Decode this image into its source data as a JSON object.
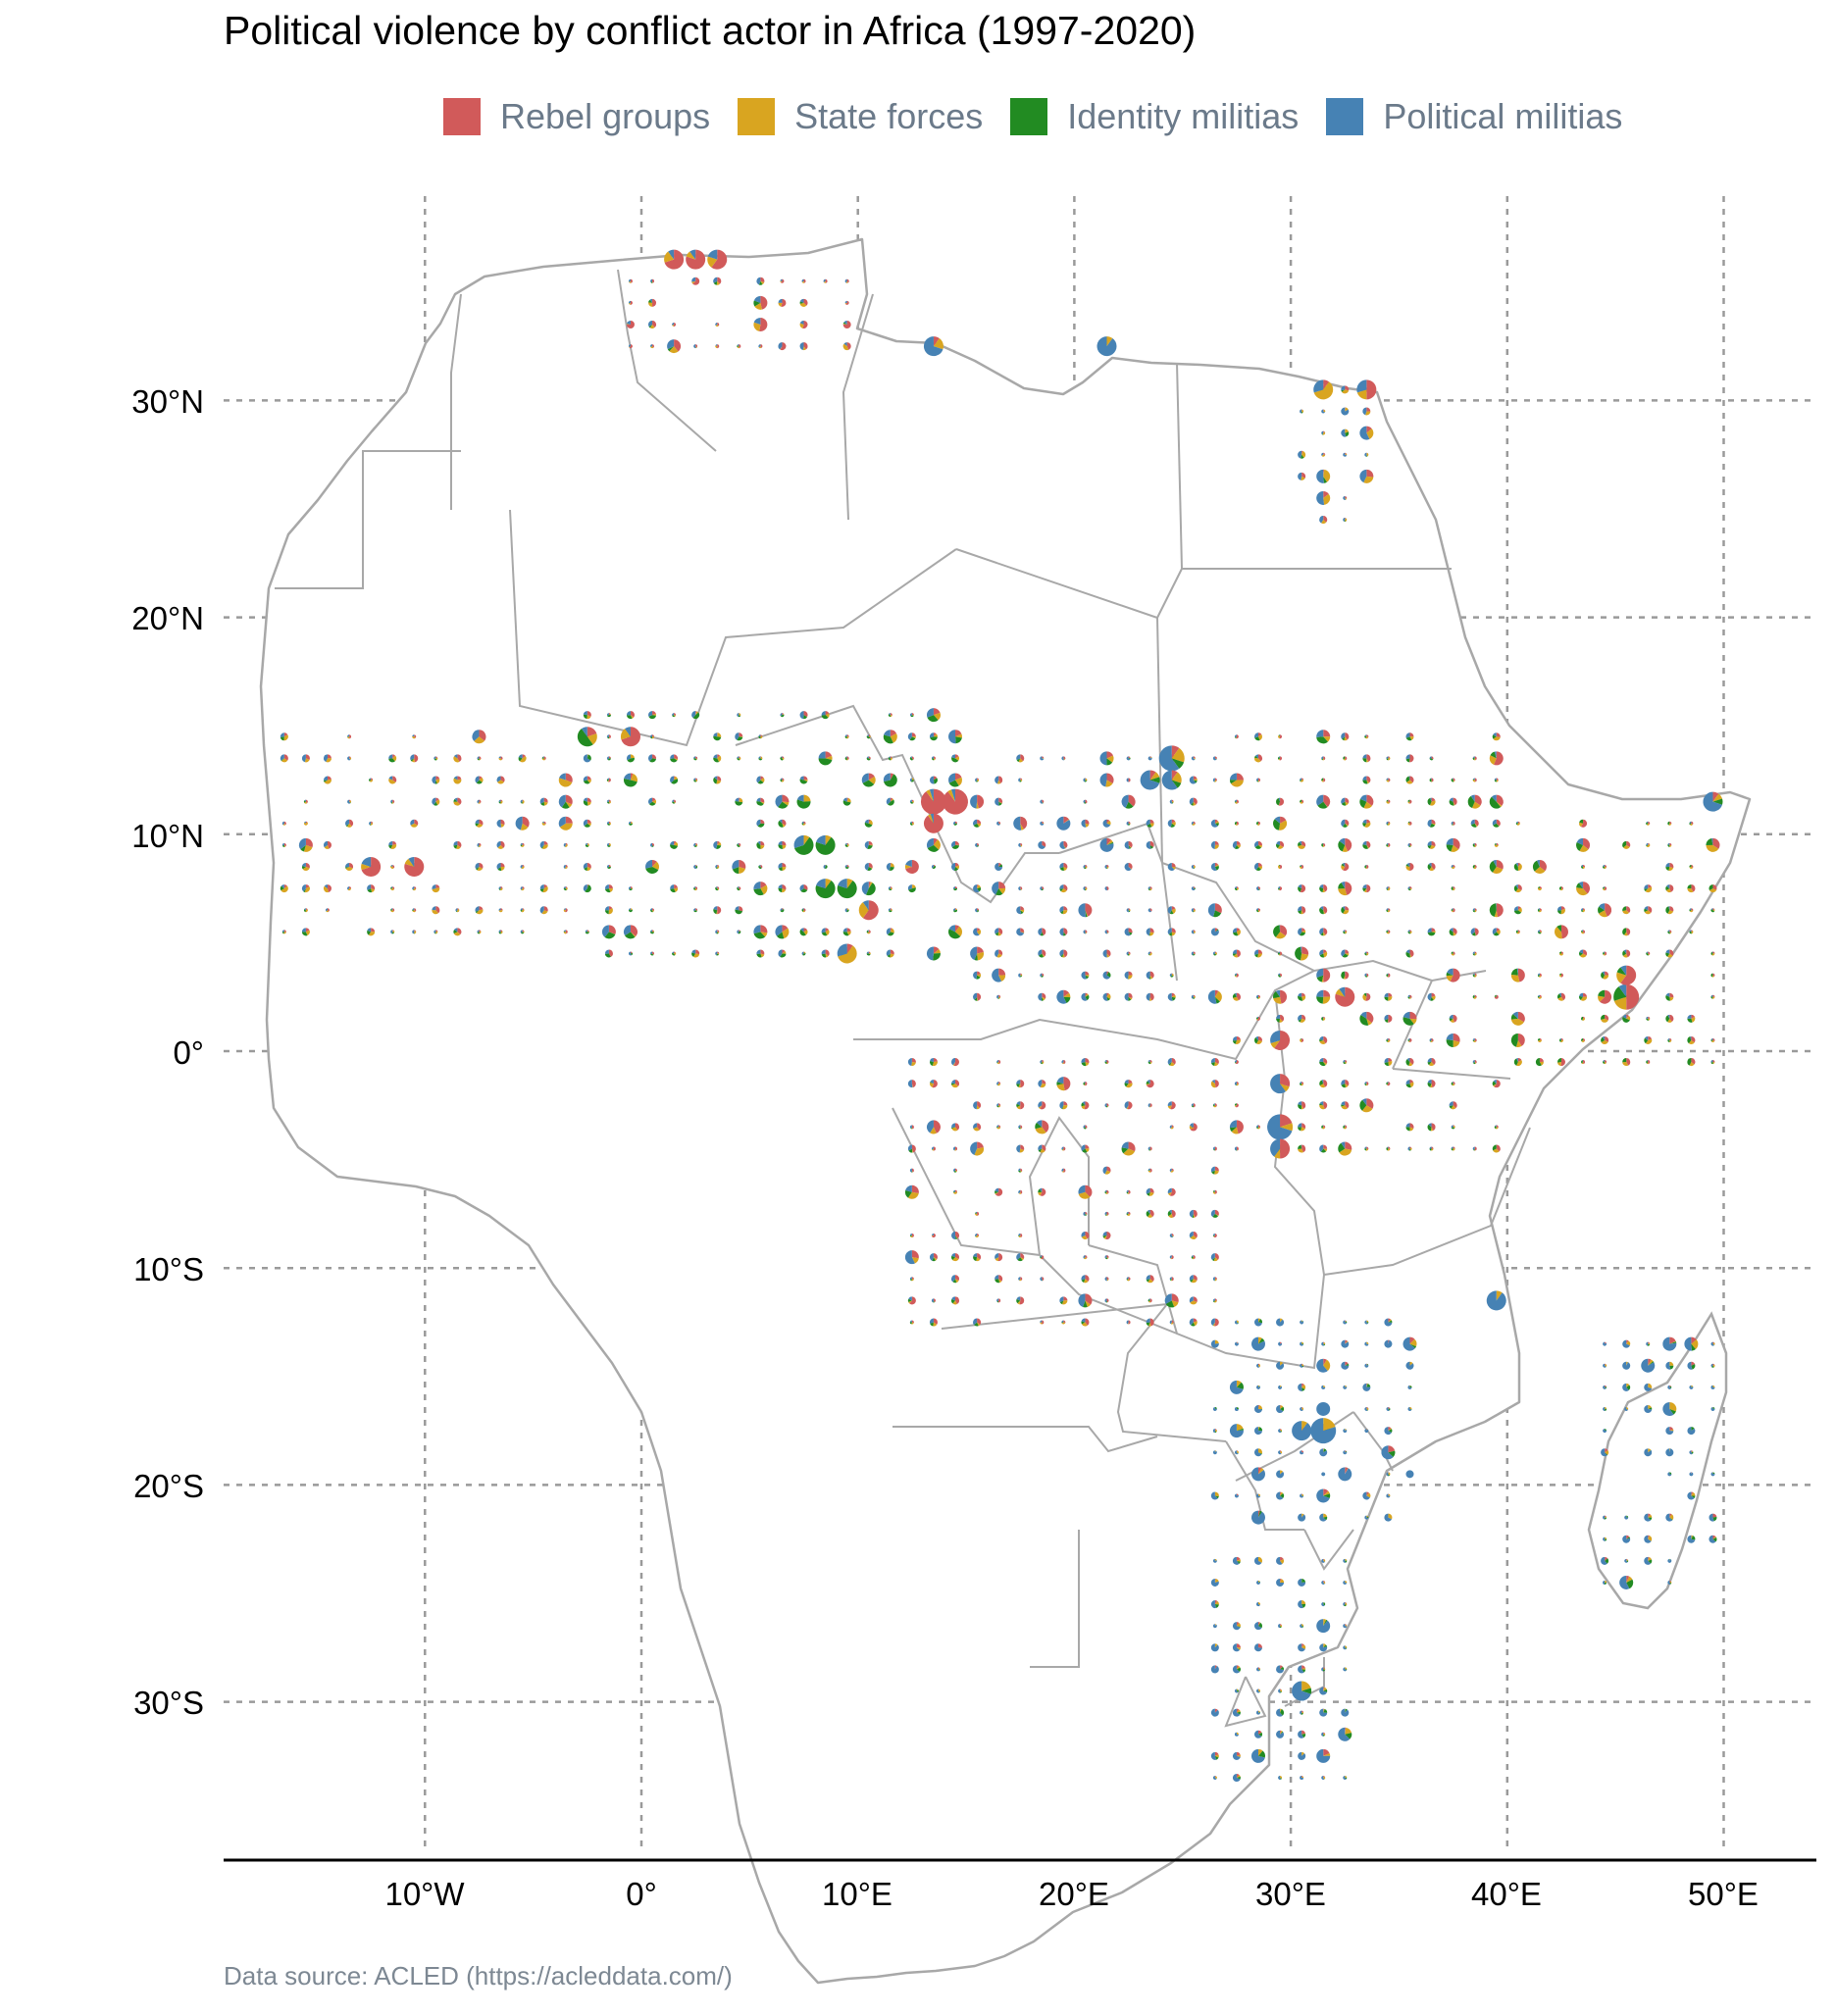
{
  "title": "Political violence by conflict actor in Africa (1997-2020)",
  "legend": [
    {
      "label": "Rebel groups",
      "color": "#d15a5a"
    },
    {
      "label": "State forces",
      "color": "#d9a520"
    },
    {
      "label": "Identity militias",
      "color": "#228b22"
    },
    {
      "label": "Political militias",
      "color": "#4682b4"
    }
  ],
  "axes": {
    "x_ticks": [
      "10°W",
      "0°",
      "10°E",
      "20°E",
      "30°E",
      "40°E",
      "50°E"
    ],
    "y_ticks": [
      "30°N",
      "20°N",
      "10°N",
      "0°",
      "10°S",
      "20°S",
      "30°S"
    ]
  },
  "source": "Data source: ACLED (https://acleddata.com/)",
  "chart_data": {
    "type": "map-pie-grid",
    "title": "Political violence by conflict actor in Africa (1997-2020)",
    "lon_range": [
      -20,
      55
    ],
    "lat_range": [
      -37,
      38
    ],
    "series": [
      "Rebel groups",
      "State forces",
      "Identity militias",
      "Political militias"
    ],
    "points": [
      {
        "lon": 1.5,
        "lat": 36.5,
        "size": 3,
        "shares": [
          0.7,
          0.2,
          0.0,
          0.1
        ]
      },
      {
        "lon": 2.5,
        "lat": 36.5,
        "size": 3,
        "shares": [
          0.8,
          0.1,
          0.0,
          0.1
        ]
      },
      {
        "lon": 3.5,
        "lat": 36.5,
        "size": 3,
        "shares": [
          0.6,
          0.2,
          0.0,
          0.2
        ]
      },
      {
        "lon": 13.5,
        "lat": 32.5,
        "size": 3,
        "shares": [
          0.1,
          0.2,
          0.0,
          0.7
        ]
      },
      {
        "lon": 21.5,
        "lat": 32.5,
        "size": 3,
        "shares": [
          0.0,
          0.1,
          0.0,
          0.9
        ]
      },
      {
        "lon": 31.5,
        "lat": 30.5,
        "size": 3,
        "shares": [
          0.1,
          0.6,
          0.0,
          0.3
        ]
      },
      {
        "lon": 33.5,
        "lat": 30.5,
        "size": 3,
        "shares": [
          0.5,
          0.2,
          0.0,
          0.3
        ]
      },
      {
        "lon": -2.5,
        "lat": 14.5,
        "size": 3,
        "shares": [
          0.2,
          0.2,
          0.5,
          0.1
        ]
      },
      {
        "lon": -0.5,
        "lat": 14.5,
        "size": 3,
        "shares": [
          0.7,
          0.2,
          0.0,
          0.1
        ]
      },
      {
        "lon": 13.5,
        "lat": 11.5,
        "size": 4,
        "shares": [
          0.9,
          0.05,
          0.0,
          0.05
        ]
      },
      {
        "lon": 14.5,
        "lat": 11.5,
        "size": 4,
        "shares": [
          0.9,
          0.05,
          0.0,
          0.05
        ]
      },
      {
        "lon": 13.5,
        "lat": 10.5,
        "size": 3,
        "shares": [
          0.9,
          0.05,
          0.0,
          0.05
        ]
      },
      {
        "lon": 7.5,
        "lat": 9.5,
        "size": 3,
        "shares": [
          0.0,
          0.1,
          0.6,
          0.3
        ]
      },
      {
        "lon": 8.5,
        "lat": 9.5,
        "size": 3,
        "shares": [
          0.0,
          0.1,
          0.7,
          0.2
        ]
      },
      {
        "lon": 8.5,
        "lat": 7.5,
        "size": 3,
        "shares": [
          0.0,
          0.1,
          0.7,
          0.2
        ]
      },
      {
        "lon": 9.5,
        "lat": 7.5,
        "size": 3,
        "shares": [
          0.0,
          0.1,
          0.7,
          0.2
        ]
      },
      {
        "lon": 24.5,
        "lat": 13.5,
        "size": 4,
        "shares": [
          0.1,
          0.2,
          0.1,
          0.6
        ]
      },
      {
        "lon": 24.5,
        "lat": 12.5,
        "size": 3,
        "shares": [
          0.1,
          0.2,
          0.1,
          0.6
        ]
      },
      {
        "lon": 23.5,
        "lat": 12.5,
        "size": 3,
        "shares": [
          0.1,
          0.1,
          0.1,
          0.7
        ]
      },
      {
        "lon": 29.5,
        "lat": 0.5,
        "size": 3,
        "shares": [
          0.6,
          0.1,
          0.0,
          0.3
        ]
      },
      {
        "lon": 29.5,
        "lat": -1.5,
        "size": 3,
        "shares": [
          0.3,
          0.1,
          0.0,
          0.6
        ]
      },
      {
        "lon": 29.5,
        "lat": -3.5,
        "size": 4,
        "shares": [
          0.2,
          0.1,
          0.0,
          0.7
        ]
      },
      {
        "lon": 29.5,
        "lat": -4.5,
        "size": 3,
        "shares": [
          0.5,
          0.1,
          0.0,
          0.4
        ]
      },
      {
        "lon": 32.5,
        "lat": 2.5,
        "size": 3,
        "shares": [
          0.8,
          0.1,
          0.0,
          0.1
        ]
      },
      {
        "lon": 45.5,
        "lat": 2.5,
        "size": 4,
        "shares": [
          0.5,
          0.2,
          0.2,
          0.1
        ]
      },
      {
        "lon": 45.5,
        "lat": 3.5,
        "size": 3,
        "shares": [
          0.6,
          0.2,
          0.1,
          0.1
        ]
      },
      {
        "lon": 39.5,
        "lat": -11.5,
        "size": 3,
        "shares": [
          0.0,
          0.1,
          0.0,
          0.9
        ]
      },
      {
        "lon": 31.5,
        "lat": -17.5,
        "size": 4,
        "shares": [
          0.0,
          0.2,
          0.0,
          0.8
        ]
      },
      {
        "lon": 30.5,
        "lat": -17.5,
        "size": 3,
        "shares": [
          0.0,
          0.1,
          0.0,
          0.9
        ]
      },
      {
        "lon": 30.5,
        "lat": -29.5,
        "size": 3,
        "shares": [
          0.0,
          0.2,
          0.1,
          0.7
        ]
      },
      {
        "lon": 49.5,
        "lat": 11.5,
        "size": 3,
        "shares": [
          0.1,
          0.1,
          0.1,
          0.7
        ]
      },
      {
        "lon": 12.5,
        "lat": 8.5,
        "size": 2,
        "shares": [
          0.7,
          0.1,
          0.0,
          0.2
        ]
      },
      {
        "lon": 10.5,
        "lat": 6.5,
        "size": 3,
        "shares": [
          0.6,
          0.3,
          0.0,
          0.1
        ]
      },
      {
        "lon": 9.5,
        "lat": 4.5,
        "size": 3,
        "shares": [
          0.1,
          0.6,
          0.0,
          0.3
        ]
      },
      {
        "lon": -12.5,
        "lat": 8.5,
        "size": 3,
        "shares": [
          0.7,
          0.1,
          0.0,
          0.2
        ]
      },
      {
        "lon": -10.5,
        "lat": 8.5,
        "size": 3,
        "shares": [
          0.8,
          0.1,
          0.0,
          0.1
        ]
      },
      {
        "lon": 25.5,
        "lat": -3.5,
        "size": 0,
        "shares": [
          0.5,
          0.2,
          0.0,
          0.3
        ]
      }
    ]
  }
}
